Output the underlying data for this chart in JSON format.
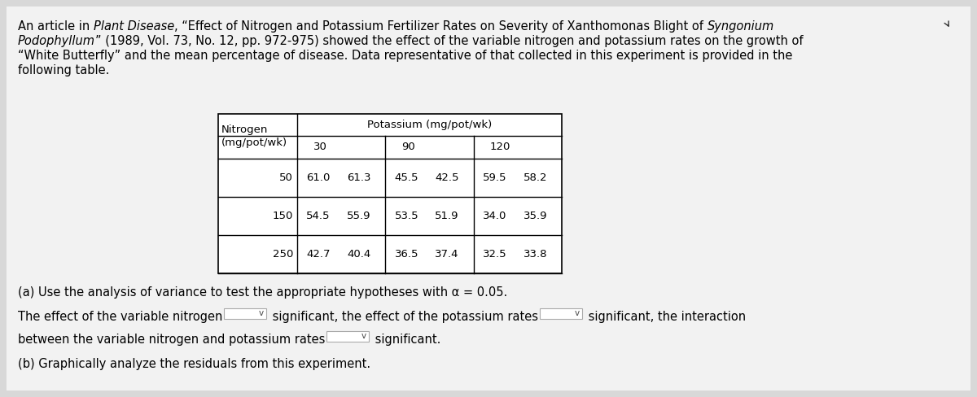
{
  "background_color": "#d8d8d8",
  "content_bg": "#f2f2f2",
  "text_color": "#000000",
  "table_header_top": "Potassium (mg/pot/wk)",
  "table_col_header_line1": "Nitrogen",
  "table_col_header_line2": "(mg/pot/wk)",
  "table_col_labels": [
    "30",
    "90",
    "120"
  ],
  "table_row_labels": [
    "50",
    "150",
    "250"
  ],
  "table_data": [
    [
      "61.0",
      "61.3",
      "45.5",
      "42.5",
      "59.5",
      "58.2"
    ],
    [
      "54.5",
      "55.9",
      "53.5",
      "51.9",
      "34.0",
      "35.9"
    ],
    [
      "42.7",
      "40.4",
      "36.5",
      "37.4",
      "32.5",
      "33.8"
    ]
  ],
  "para_line1_normal1": "An article in ",
  "para_line1_italic1": "Plant Disease",
  "para_line1_normal2": ", “Effect of Nitrogen and Potassium Fertilizer Rates on Severity of Xanthomonas Blight of ",
  "para_line1_italic2": "Syngonium",
  "para_line2_italic1": "Podophyllum",
  "para_line2_normal1": "” (1989, Vol. 73, No. 12, pp. 972-975) showed the effect of the variable nitrogen and potassium rates on the growth of",
  "para_line3": "“White Butterfly” and the mean percentage of disease. Data representative of that collected in this experiment is provided in the",
  "para_line4": "following table.",
  "part_a_text": "(a) Use the analysis of variance to test the appropriate hypotheses with α = 0.05.",
  "line1_seg1": "The effect of the variable nitrogen",
  "line1_seg2": " significant, the effect of the potassium rates",
  "line1_seg3": " significant, the interaction",
  "line2_seg1": "between the variable nitrogen and potassium rates",
  "line2_seg2": " significant.",
  "part_b_text": "(b) Graphically analyze the residuals from this experiment.",
  "font_size_body": 10.5,
  "font_size_table": 9.5,
  "dropdown_v": "v"
}
